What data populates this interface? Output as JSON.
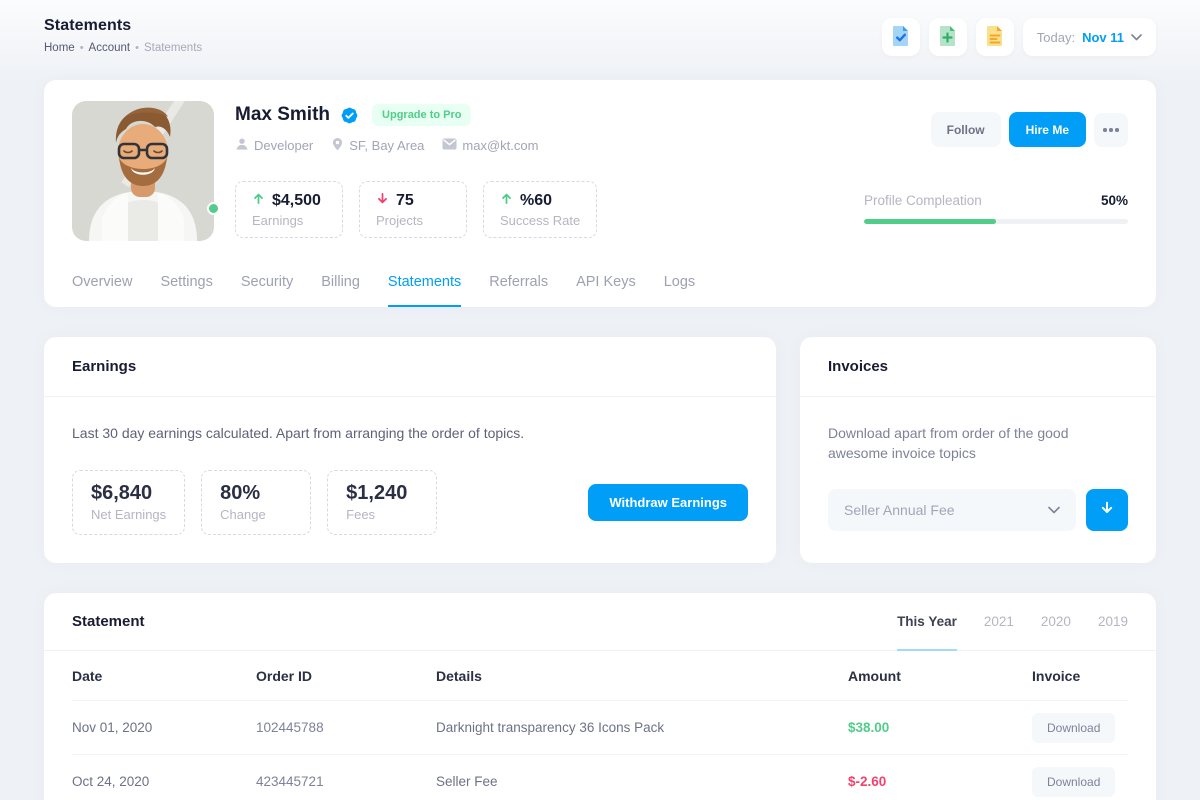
{
  "colors": {
    "accent": "#009ef7",
    "success": "#50cd89",
    "danger": "#f1416c",
    "badge_bg": "#e8fff3"
  },
  "header": {
    "title": "Statements",
    "crumbs": [
      {
        "label": "Home"
      },
      {
        "label": "Account"
      },
      {
        "label": "Statements"
      }
    ],
    "crumb_sep": "•",
    "icon_buttons": [
      "file-check-icon",
      "file-plus-icon",
      "file-lines-icon"
    ],
    "date_prefix": "Today:",
    "date_value": "Nov 11"
  },
  "profile": {
    "name": "Max Smith",
    "badge_label": "Upgrade to Pro",
    "meta": [
      {
        "icon": "person-icon",
        "label": "Developer"
      },
      {
        "icon": "pin-icon",
        "label": "SF, Bay Area"
      },
      {
        "icon": "mail-icon",
        "label": "max@kt.com"
      }
    ],
    "stats": [
      {
        "trend": "up",
        "value": "$4,500",
        "label": "Earnings"
      },
      {
        "trend": "down",
        "value": "75",
        "label": "Projects"
      },
      {
        "trend": "up",
        "value": "%60",
        "label": "Success Rate"
      }
    ],
    "actions": {
      "follow": "Follow",
      "hire": "Hire Me"
    },
    "progress": {
      "label": "Profile Compleation",
      "value": "50%",
      "percent": 50
    }
  },
  "tabs": {
    "items": [
      {
        "label": "Overview"
      },
      {
        "label": "Settings"
      },
      {
        "label": "Security"
      },
      {
        "label": "Billing"
      },
      {
        "label": "Statements",
        "active": true
      },
      {
        "label": "Referrals"
      },
      {
        "label": "API Keys"
      },
      {
        "label": "Logs"
      }
    ]
  },
  "earnings": {
    "title": "Earnings",
    "description": "Last 30 day earnings calculated. Apart from arranging the order of topics.",
    "stats": [
      {
        "value": "$6,840",
        "label": "Net Earnings"
      },
      {
        "value": "80%",
        "label": "Change"
      },
      {
        "value": "$1,240",
        "label": "Fees"
      }
    ],
    "withdraw_label": "Withdraw Earnings"
  },
  "invoices": {
    "title": "Invoices",
    "description": "Download apart from order of the good awesome invoice topics",
    "select_value": "Seller Annual Fee"
  },
  "statement": {
    "title": "Statement",
    "tabs": [
      "This Year",
      "2021",
      "2020",
      "2019"
    ],
    "columns": [
      "Date",
      "Order ID",
      "Details",
      "Amount",
      "Invoice"
    ],
    "rows": [
      {
        "date": "Nov 01, 2020",
        "order_id": "102445788",
        "details": "Darknight transparency 36 Icons Pack",
        "amount": "$38.00",
        "amount_sign": "positive",
        "invoice_label": "Download"
      },
      {
        "date": "Oct 24, 2020",
        "order_id": "423445721",
        "details": "Seller Fee",
        "amount": "$-2.60",
        "amount_sign": "negative",
        "invoice_label": "Download"
      }
    ]
  }
}
